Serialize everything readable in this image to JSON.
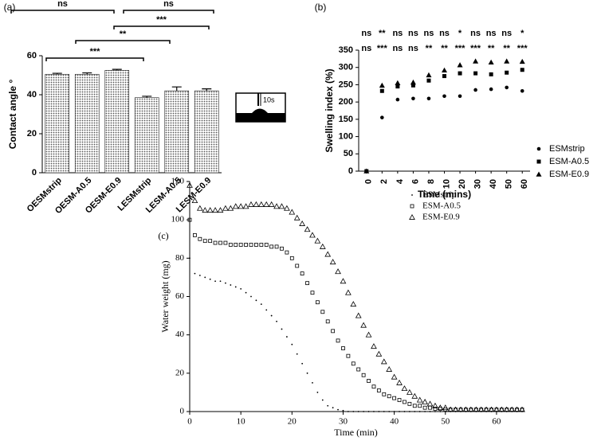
{
  "chart_data": [
    {
      "type": "bar",
      "panel_label": "(a)",
      "y_label": "Contact angle °",
      "categories": [
        "OESMstrip",
        "OESM-A0.5",
        "OESM-E0.9",
        "LESMstrip",
        "LESM-A0.5",
        "LESM-E0.9"
      ],
      "values": [
        50.5,
        50.5,
        52.5,
        38.5,
        42,
        42
      ],
      "errors": [
        0.5,
        0.7,
        0.5,
        0.7,
        2,
        1
      ],
      "color": "#9a9a9a",
      "ylim": [
        0,
        60
      ],
      "yticks": [
        0,
        20,
        40,
        60
      ],
      "significance": [
        "ns",
        "ns",
        "***",
        "**",
        "***"
      ],
      "inset_label": "10s"
    },
    {
      "type": "scatter",
      "panel_label": "(b)",
      "x_label": "Time (mins)",
      "y_label": "Swelling index (%)",
      "categories": [
        "0",
        "2",
        "4",
        "6",
        "8",
        "10",
        "20",
        "30",
        "40",
        "50",
        "60"
      ],
      "series": [
        {
          "name": "ESMstrip",
          "color": "#000000",
          "marker": "circle",
          "values": [
            0,
            155,
            207,
            210,
            210,
            217,
            217,
            235,
            237,
            242,
            232
          ]
        },
        {
          "name": "ESM-A0.5",
          "color": "#000000",
          "marker": "square",
          "values": [
            0,
            232,
            245,
            248,
            262,
            275,
            283,
            283,
            280,
            285,
            293
          ]
        },
        {
          "name": "ESM-E0.9",
          "color": "#000000",
          "marker": "triangle",
          "values": [
            0,
            248,
            255,
            257,
            278,
            292,
            307,
            318,
            315,
            318,
            317
          ]
        }
      ],
      "ylim": [
        0,
        350
      ],
      "yticks": [
        0,
        50,
        100,
        150,
        200,
        250,
        300,
        350
      ],
      "significance_rows": [
        [
          "ns",
          "**",
          "ns",
          "ns",
          "ns",
          "ns",
          "*",
          "ns",
          "ns",
          "ns",
          "*"
        ],
        [
          "ns",
          "***",
          "ns",
          "ns",
          "**",
          "**",
          "***",
          "***",
          "**",
          "**",
          "***"
        ]
      ],
      "legend": "right"
    },
    {
      "type": "scatter",
      "panel_label": "(c)",
      "x_label": "Time (min)",
      "y_label": "Water weight (mg)",
      "x": [
        0,
        1,
        2,
        3,
        4,
        5,
        6,
        7,
        8,
        9,
        10,
        11,
        12,
        13,
        14,
        15,
        16,
        17,
        18,
        19,
        20,
        21,
        22,
        23,
        24,
        25,
        26,
        27,
        28,
        29,
        30,
        31,
        32,
        33,
        34,
        35,
        36,
        37,
        38,
        39,
        40,
        41,
        42,
        43,
        44,
        45,
        46,
        47,
        48,
        49,
        50,
        51,
        52,
        53,
        54,
        55,
        56,
        57,
        58,
        59,
        60,
        61,
        62,
        63,
        64,
        65
      ],
      "series": [
        {
          "name": "ESMstrip",
          "color": "#000000",
          "marker": "dot",
          "values": [
            80,
            72,
            71,
            70,
            69,
            68,
            68,
            67,
            66,
            65,
            64,
            62,
            60,
            58,
            56,
            53,
            50,
            47,
            43,
            39,
            35,
            30,
            25,
            20,
            15,
            10,
            6,
            3,
            2,
            1,
            0.5,
            0,
            0,
            0,
            0,
            0,
            0,
            0,
            0,
            0,
            0,
            0,
            0,
            0,
            0,
            0,
            0,
            0,
            0,
            0,
            0,
            0,
            0,
            0,
            0,
            0,
            0,
            0,
            0,
            0,
            0,
            0,
            0,
            0,
            0,
            0
          ]
        },
        {
          "name": "ESM-A0.5",
          "color": "#000000",
          "marker": "square-open",
          "values": [
            100,
            92,
            90,
            89,
            89,
            88,
            88,
            88,
            87,
            87,
            87,
            87,
            87,
            87,
            87,
            87,
            86,
            86,
            85,
            83,
            80,
            76,
            72,
            67,
            62,
            57,
            52,
            47,
            42,
            37,
            33,
            29,
            25,
            22,
            19,
            16,
            13,
            11,
            9,
            8,
            7,
            6,
            5,
            4,
            3,
            3,
            2,
            2,
            1.5,
            1.5,
            1,
            1,
            1,
            1,
            1,
            1,
            1,
            1,
            1,
            1,
            1,
            1,
            1,
            1,
            1,
            1
          ]
        },
        {
          "name": "ESM-E0.9",
          "color": "#000000",
          "marker": "triangle-open",
          "values": [
            118,
            110,
            106,
            105,
            105,
            105,
            105,
            106,
            106,
            107,
            107,
            107,
            108,
            108,
            108,
            108,
            108,
            107,
            107,
            106,
            104,
            101,
            98,
            95,
            92,
            89,
            86,
            82,
            78,
            73,
            68,
            62,
            56,
            50,
            45,
            40,
            34,
            30,
            26,
            22,
            18,
            15,
            12,
            10,
            8,
            6,
            5,
            4,
            3,
            2,
            2,
            1,
            1,
            1,
            1,
            1,
            1,
            1,
            1,
            1,
            1,
            1,
            1,
            1,
            1,
            1
          ]
        }
      ],
      "xlim": [
        0,
        65
      ],
      "xticks": [
        0,
        10,
        20,
        30,
        40,
        50,
        60
      ],
      "ylim": [
        0,
        120
      ],
      "yticks": [
        0,
        20,
        40,
        60,
        80,
        100,
        120
      ],
      "legend": "upper right"
    }
  ]
}
